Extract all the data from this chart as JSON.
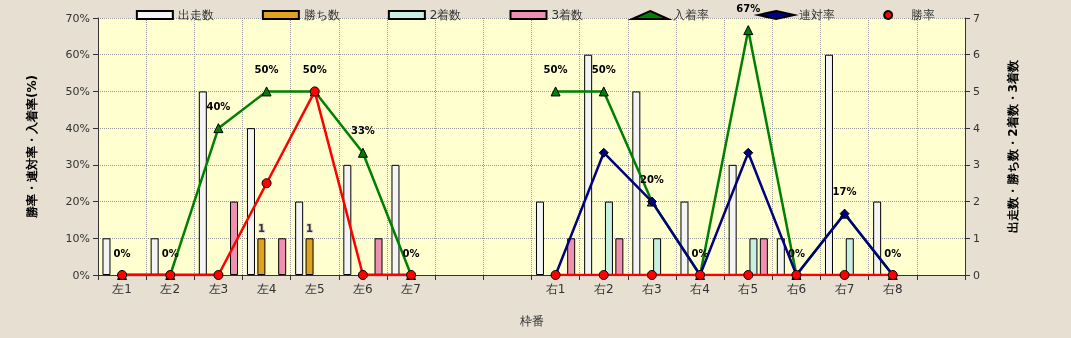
{
  "chart_data": {
    "type": "bar",
    "xlabel": "枠番",
    "ylabel": "勝率・連対率・入着率(%)",
    "y2label": "出走数・勝ち数・2着数・3着数",
    "categories": [
      "左1",
      "左2",
      "左3",
      "左4",
      "左5",
      "左6",
      "左7",
      null,
      null,
      "右1",
      "右2",
      "右3",
      "右4",
      "右5",
      "右6",
      "右7",
      "右8",
      null
    ],
    "series": [
      {
        "name": "出走数",
        "axis": "y2",
        "color": "#f4f4f4",
        "values": [
          1,
          1,
          5,
          4,
          2,
          3,
          3,
          null,
          null,
          2,
          6,
          5,
          2,
          3,
          1,
          6,
          2,
          null
        ]
      },
      {
        "name": "勝ち数",
        "axis": "y2",
        "color": "#e0a020",
        "values": [
          0,
          0,
          0,
          1,
          1,
          0,
          0,
          null,
          null,
          0,
          0,
          0,
          0,
          0,
          0,
          0,
          0,
          null
        ],
        "value_labels": [
          null,
          null,
          null,
          "1",
          "1",
          null,
          null,
          null,
          null,
          null,
          null,
          null,
          null,
          null,
          null,
          null,
          null,
          null
        ]
      },
      {
        "name": "2着数",
        "axis": "y2",
        "color": "#c8f0e0",
        "values": [
          0,
          0,
          0,
          0,
          0,
          0,
          0,
          null,
          null,
          0,
          2,
          1,
          0,
          1,
          0,
          1,
          0,
          null
        ]
      },
      {
        "name": "3着数",
        "axis": "y2",
        "color": "#f090b0",
        "values": [
          0,
          0,
          2,
          1,
          0,
          1,
          0,
          null,
          null,
          1,
          1,
          0,
          0,
          1,
          0,
          0,
          0,
          null
        ]
      },
      {
        "name": "入着率",
        "type": "line",
        "axis": "y",
        "marker": "triangle",
        "color": "#008000",
        "values": [
          0,
          0,
          40,
          50,
          50,
          33.3,
          0,
          null,
          null,
          50,
          50,
          20,
          0,
          66.7,
          0,
          16.7,
          0,
          null
        ],
        "value_labels": [
          "0%",
          "0%",
          "40%",
          "50%",
          "50%",
          "33%",
          "0%",
          null,
          null,
          "50%",
          "50%",
          "20%",
          "0%",
          "67%",
          "0%",
          "17%",
          "0%",
          null
        ]
      },
      {
        "name": "連対率",
        "type": "line",
        "axis": "y",
        "marker": "diamond",
        "color": "#000080",
        "values": [
          0,
          0,
          0,
          null,
          null,
          0,
          0,
          null,
          null,
          0,
          33.3,
          20,
          0,
          33.3,
          0,
          16.7,
          0,
          null
        ]
      },
      {
        "name": "勝率",
        "type": "line",
        "axis": "y",
        "marker": "circle",
        "color": "#ff0000",
        "values": [
          0,
          0,
          0,
          25,
          50,
          0,
          0,
          null,
          null,
          0,
          0,
          0,
          0,
          0,
          0,
          0,
          0,
          null
        ]
      }
    ],
    "ylim": [
      0,
      70
    ],
    "yticks": [
      {
        "value": 0,
        "label": "0%"
      },
      {
        "value": 10,
        "label": "10%"
      },
      {
        "value": 20,
        "label": "20%"
      },
      {
        "value": 30,
        "label": "30%"
      },
      {
        "value": 40,
        "label": "40%"
      },
      {
        "value": 50,
        "label": "50%"
      },
      {
        "value": 60,
        "label": "60%"
      },
      {
        "value": 70,
        "label": "70%"
      }
    ],
    "y2lim": [
      0,
      7
    ],
    "y2ticks": [
      0,
      1,
      2,
      3,
      4,
      5,
      6,
      7
    ],
    "grid": true,
    "legend": "top",
    "line_style": "solid"
  }
}
